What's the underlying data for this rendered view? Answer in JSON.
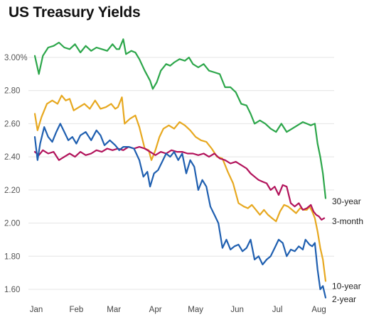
{
  "chart_data": {
    "type": "line",
    "title": "US Treasury Yields",
    "xlabel": "",
    "ylabel": "",
    "x_ticks": [
      "Jan",
      "Feb",
      "Mar",
      "Apr",
      "May",
      "Jun",
      "Jul",
      "Aug"
    ],
    "y_ticks": [
      "3.00%",
      "2.80",
      "2.60",
      "2.40",
      "2.20",
      "2.00",
      "1.80",
      "1.60"
    ],
    "ylim": [
      1.57,
      3.12
    ],
    "grid": true,
    "series": [
      {
        "name": "30-year",
        "color": "#2ca64a",
        "data": [
          [
            0,
            3.01
          ],
          [
            3,
            2.9
          ],
          [
            6,
            3.01
          ],
          [
            10,
            3.06
          ],
          [
            14,
            3.07
          ],
          [
            18,
            3.09
          ],
          [
            22,
            3.06
          ],
          [
            26,
            3.05
          ],
          [
            30,
            3.08
          ],
          [
            34,
            3.03
          ],
          [
            38,
            3.07
          ],
          [
            42,
            3.04
          ],
          [
            46,
            3.06
          ],
          [
            50,
            3.05
          ],
          [
            54,
            3.04
          ],
          [
            58,
            3.08
          ],
          [
            61,
            3.05
          ],
          [
            63,
            3.05
          ],
          [
            66,
            3.11
          ],
          [
            68,
            3.02
          ],
          [
            72,
            3.04
          ],
          [
            75,
            3.03
          ],
          [
            78,
            2.99
          ],
          [
            82,
            2.92
          ],
          [
            86,
            2.86
          ],
          [
            88,
            2.81
          ],
          [
            91,
            2.85
          ],
          [
            94,
            2.92
          ],
          [
            98,
            2.96
          ],
          [
            101,
            2.95
          ],
          [
            104,
            2.97
          ],
          [
            108,
            2.99
          ],
          [
            112,
            2.98
          ],
          [
            115,
            3.0
          ],
          [
            118,
            2.96
          ],
          [
            122,
            2.94
          ],
          [
            126,
            2.96
          ],
          [
            130,
            2.92
          ],
          [
            134,
            2.91
          ],
          [
            138,
            2.9
          ],
          [
            142,
            2.82
          ],
          [
            146,
            2.82
          ],
          [
            150,
            2.79
          ],
          [
            154,
            2.72
          ],
          [
            158,
            2.71
          ],
          [
            161,
            2.66
          ],
          [
            164,
            2.6
          ],
          [
            168,
            2.62
          ],
          [
            172,
            2.6
          ],
          [
            176,
            2.57
          ],
          [
            180,
            2.55
          ],
          [
            184,
            2.6
          ],
          [
            188,
            2.55
          ],
          [
            192,
            2.57
          ],
          [
            196,
            2.59
          ],
          [
            200,
            2.61
          ],
          [
            203,
            2.6
          ],
          [
            206,
            2.59
          ],
          [
            209,
            2.6
          ],
          [
            211,
            2.48
          ],
          [
            213,
            2.4
          ],
          [
            215,
            2.3
          ],
          [
            217,
            2.15
          ]
        ]
      },
      {
        "name": "10-year",
        "color": "#e7a81f",
        "data": [
          [
            0,
            2.66
          ],
          [
            2,
            2.56
          ],
          [
            5,
            2.64
          ],
          [
            9,
            2.72
          ],
          [
            13,
            2.74
          ],
          [
            17,
            2.72
          ],
          [
            20,
            2.77
          ],
          [
            23,
            2.74
          ],
          [
            26,
            2.75
          ],
          [
            29,
            2.68
          ],
          [
            33,
            2.7
          ],
          [
            37,
            2.72
          ],
          [
            41,
            2.69
          ],
          [
            45,
            2.74
          ],
          [
            49,
            2.69
          ],
          [
            53,
            2.7
          ],
          [
            57,
            2.72
          ],
          [
            60,
            2.69
          ],
          [
            62,
            2.7
          ],
          [
            65,
            2.76
          ],
          [
            67,
            2.6
          ],
          [
            71,
            2.63
          ],
          [
            75,
            2.65
          ],
          [
            78,
            2.58
          ],
          [
            82,
            2.45
          ],
          [
            85,
            2.44
          ],
          [
            87,
            2.38
          ],
          [
            90,
            2.44
          ],
          [
            93,
            2.52
          ],
          [
            96,
            2.57
          ],
          [
            100,
            2.59
          ],
          [
            104,
            2.57
          ],
          [
            108,
            2.61
          ],
          [
            112,
            2.59
          ],
          [
            116,
            2.56
          ],
          [
            120,
            2.52
          ],
          [
            124,
            2.5
          ],
          [
            128,
            2.49
          ],
          [
            132,
            2.45
          ],
          [
            136,
            2.4
          ],
          [
            140,
            2.39
          ],
          [
            144,
            2.31
          ],
          [
            148,
            2.24
          ],
          [
            152,
            2.12
          ],
          [
            156,
            2.1
          ],
          [
            159,
            2.09
          ],
          [
            162,
            2.11
          ],
          [
            165,
            2.08
          ],
          [
            168,
            2.05
          ],
          [
            171,
            2.08
          ],
          [
            174,
            2.05
          ],
          [
            177,
            2.03
          ],
          [
            180,
            2.01
          ],
          [
            183,
            2.07
          ],
          [
            186,
            2.11
          ],
          [
            189,
            2.1
          ],
          [
            192,
            2.08
          ],
          [
            195,
            2.06
          ],
          [
            198,
            2.09
          ],
          [
            201,
            2.08
          ],
          [
            203,
            2.08
          ],
          [
            205,
            2.1
          ],
          [
            207,
            2.07
          ],
          [
            209,
            2.03
          ],
          [
            211,
            1.95
          ],
          [
            213,
            1.85
          ],
          [
            215,
            1.78
          ],
          [
            217,
            1.65
          ]
        ]
      },
      {
        "name": "3-month",
        "color": "#b2135b",
        "data": [
          [
            0,
            2.43
          ],
          [
            3,
            2.41
          ],
          [
            6,
            2.44
          ],
          [
            10,
            2.42
          ],
          [
            14,
            2.43
          ],
          [
            18,
            2.38
          ],
          [
            22,
            2.4
          ],
          [
            26,
            2.42
          ],
          [
            30,
            2.4
          ],
          [
            34,
            2.43
          ],
          [
            38,
            2.41
          ],
          [
            42,
            2.42
          ],
          [
            46,
            2.44
          ],
          [
            50,
            2.43
          ],
          [
            54,
            2.45
          ],
          [
            58,
            2.44
          ],
          [
            62,
            2.45
          ],
          [
            66,
            2.44
          ],
          [
            70,
            2.46
          ],
          [
            74,
            2.45
          ],
          [
            78,
            2.46
          ],
          [
            82,
            2.45
          ],
          [
            86,
            2.43
          ],
          [
            90,
            2.41
          ],
          [
            94,
            2.43
          ],
          [
            98,
            2.42
          ],
          [
            102,
            2.44
          ],
          [
            106,
            2.43
          ],
          [
            110,
            2.43
          ],
          [
            114,
            2.42
          ],
          [
            118,
            2.42
          ],
          [
            122,
            2.41
          ],
          [
            126,
            2.42
          ],
          [
            130,
            2.4
          ],
          [
            134,
            2.42
          ],
          [
            138,
            2.39
          ],
          [
            142,
            2.38
          ],
          [
            146,
            2.36
          ],
          [
            150,
            2.37
          ],
          [
            154,
            2.35
          ],
          [
            158,
            2.33
          ],
          [
            161,
            2.3
          ],
          [
            164,
            2.28
          ],
          [
            167,
            2.26
          ],
          [
            170,
            2.25
          ],
          [
            173,
            2.24
          ],
          [
            176,
            2.2
          ],
          [
            179,
            2.22
          ],
          [
            182,
            2.17
          ],
          [
            185,
            2.23
          ],
          [
            188,
            2.22
          ],
          [
            191,
            2.12
          ],
          [
            194,
            2.1
          ],
          [
            197,
            2.12
          ],
          [
            200,
            2.08
          ],
          [
            203,
            2.09
          ],
          [
            206,
            2.11
          ],
          [
            208,
            2.07
          ],
          [
            210,
            2.05
          ],
          [
            212,
            2.04
          ],
          [
            214,
            2.02
          ],
          [
            216,
            2.03
          ]
        ]
      },
      {
        "name": "2-year",
        "color": "#1f5fb0",
        "data": [
          [
            0,
            2.52
          ],
          [
            2,
            2.38
          ],
          [
            4,
            2.48
          ],
          [
            7,
            2.58
          ],
          [
            10,
            2.52
          ],
          [
            13,
            2.49
          ],
          [
            16,
            2.55
          ],
          [
            19,
            2.6
          ],
          [
            22,
            2.55
          ],
          [
            25,
            2.5
          ],
          [
            28,
            2.52
          ],
          [
            31,
            2.48
          ],
          [
            34,
            2.53
          ],
          [
            38,
            2.55
          ],
          [
            42,
            2.5
          ],
          [
            46,
            2.56
          ],
          [
            49,
            2.53
          ],
          [
            52,
            2.47
          ],
          [
            56,
            2.5
          ],
          [
            60,
            2.47
          ],
          [
            63,
            2.44
          ],
          [
            66,
            2.46
          ],
          [
            70,
            2.46
          ],
          [
            74,
            2.45
          ],
          [
            78,
            2.38
          ],
          [
            81,
            2.28
          ],
          [
            84,
            2.31
          ],
          [
            86,
            2.22
          ],
          [
            89,
            2.3
          ],
          [
            92,
            2.32
          ],
          [
            95,
            2.37
          ],
          [
            98,
            2.42
          ],
          [
            101,
            2.4
          ],
          [
            104,
            2.43
          ],
          [
            107,
            2.38
          ],
          [
            110,
            2.42
          ],
          [
            113,
            2.3
          ],
          [
            116,
            2.38
          ],
          [
            119,
            2.34
          ],
          [
            122,
            2.2
          ],
          [
            125,
            2.26
          ],
          [
            128,
            2.22
          ],
          [
            131,
            2.1
          ],
          [
            134,
            2.05
          ],
          [
            137,
            2.0
          ],
          [
            140,
            1.85
          ],
          [
            143,
            1.9
          ],
          [
            146,
            1.84
          ],
          [
            149,
            1.86
          ],
          [
            152,
            1.87
          ],
          [
            155,
            1.83
          ],
          [
            158,
            1.85
          ],
          [
            161,
            1.9
          ],
          [
            164,
            1.78
          ],
          [
            167,
            1.8
          ],
          [
            170,
            1.75
          ],
          [
            173,
            1.78
          ],
          [
            176,
            1.8
          ],
          [
            179,
            1.85
          ],
          [
            182,
            1.9
          ],
          [
            185,
            1.88
          ],
          [
            188,
            1.8
          ],
          [
            191,
            1.84
          ],
          [
            194,
            1.83
          ],
          [
            197,
            1.86
          ],
          [
            200,
            1.84
          ],
          [
            202,
            1.9
          ],
          [
            205,
            1.87
          ],
          [
            207,
            1.86
          ],
          [
            209,
            1.88
          ],
          [
            211,
            1.72
          ],
          [
            213,
            1.6
          ],
          [
            215,
            1.62
          ],
          [
            217,
            1.55
          ]
        ]
      }
    ]
  }
}
